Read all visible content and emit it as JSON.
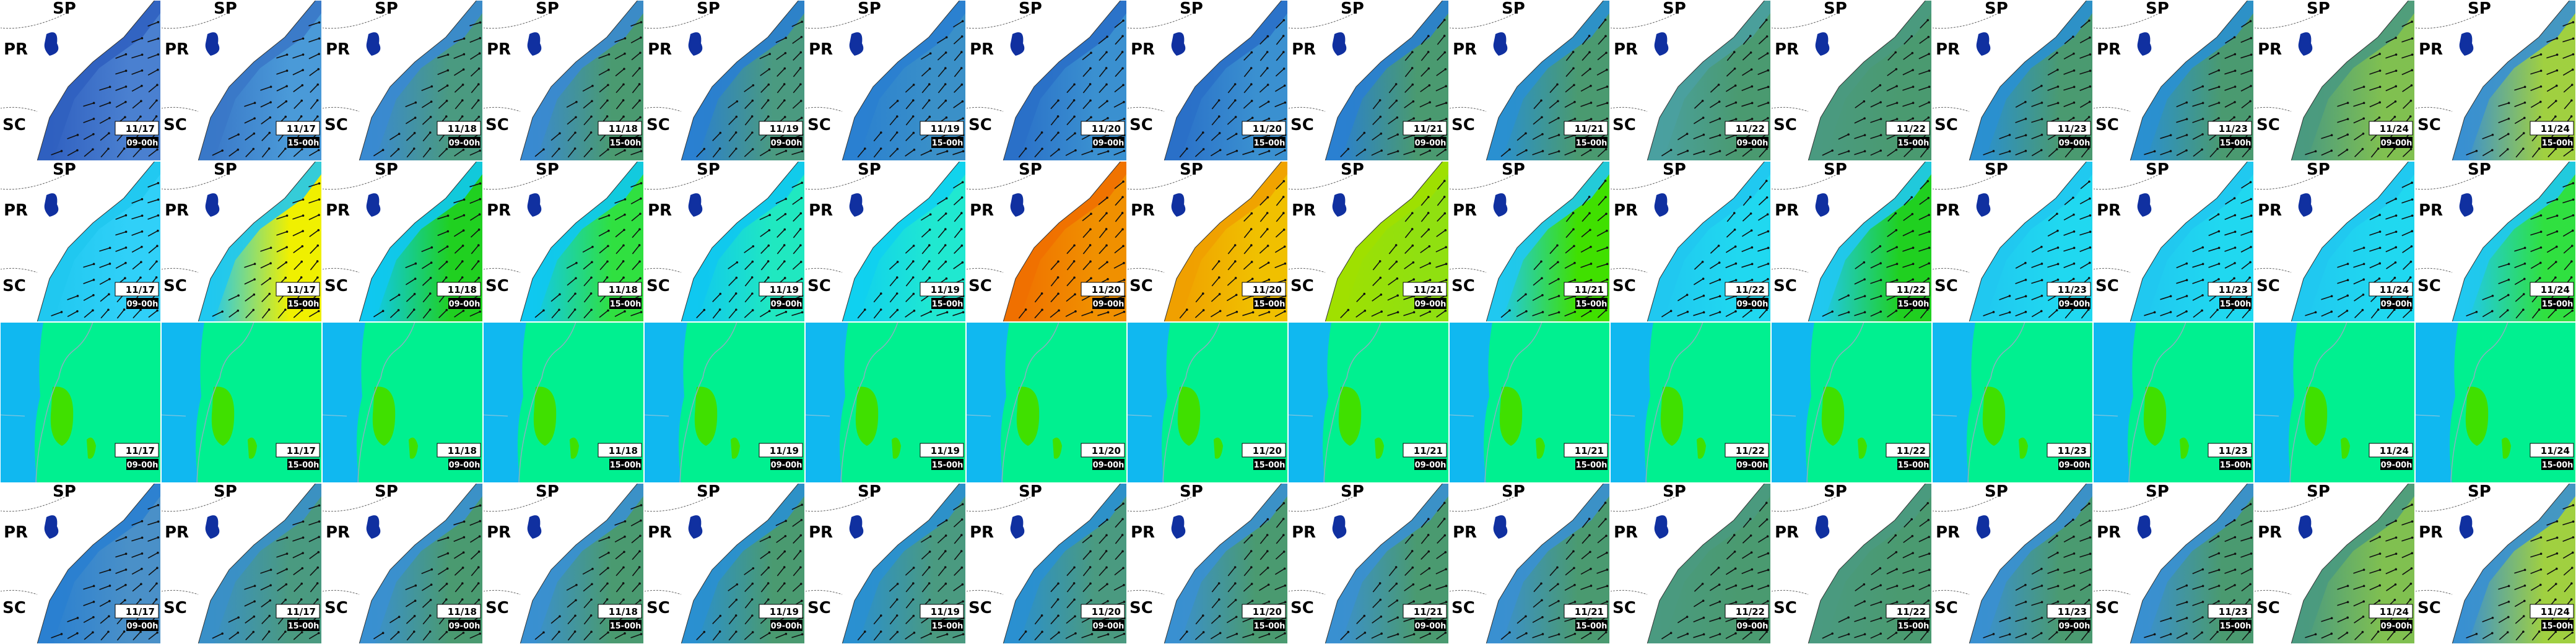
{
  "states": {
    "north": "SP",
    "middle": "PR",
    "south": "SC"
  },
  "timestamps": [
    {
      "date": "11/17",
      "time": "09-00h"
    },
    {
      "date": "11/17",
      "time": "15-00h"
    },
    {
      "date": "11/18",
      "time": "09-00h"
    },
    {
      "date": "11/18",
      "time": "15-00h"
    },
    {
      "date": "11/19",
      "time": "09-00h"
    },
    {
      "date": "11/19",
      "time": "15-00h"
    },
    {
      "date": "11/20",
      "time": "09-00h"
    },
    {
      "date": "11/20",
      "time": "15-00h"
    },
    {
      "date": "11/21",
      "time": "09-00h"
    },
    {
      "date": "11/21",
      "time": "15-00h"
    },
    {
      "date": "11/22",
      "time": "09-00h"
    },
    {
      "date": "11/22",
      "time": "15-00h"
    },
    {
      "date": "11/23",
      "time": "09-00h"
    },
    {
      "date": "11/23",
      "time": "15-00h"
    },
    {
      "date": "11/24",
      "time": "09-00h"
    },
    {
      "date": "11/24",
      "time": "15-00h"
    }
  ],
  "rows": [
    {
      "style": "map",
      "show_states": true,
      "colors": [
        [
          "#3060c0",
          "#4a80d0"
        ],
        [
          "#3a78c8",
          "#4a9ad8"
        ],
        [
          "#3a8ad0",
          "#4a9a80"
        ],
        [
          "#3a8ad0",
          "#4a9a70"
        ],
        [
          "#2a80d0",
          "#4a9a80"
        ],
        [
          "#2a80d0",
          "#3a90c8"
        ],
        [
          "#2a70c8",
          "#3a90d0"
        ],
        [
          "#2a70c8",
          "#3a90d0"
        ],
        [
          "#2a80d0",
          "#4a9a70"
        ],
        [
          "#2a90d0",
          "#4a9a70"
        ],
        [
          "#4aa0a0",
          "#4a9a70"
        ],
        [
          "#4a9a80",
          "#4a9a70"
        ],
        [
          "#2a90d0",
          "#4a9a70"
        ],
        [
          "#2a90d0",
          "#4a9a70"
        ],
        [
          "#4a9a80",
          "#80c050"
        ],
        [
          "#3a90d0",
          "#a0d040"
        ]
      ]
    },
    {
      "style": "map",
      "show_states": true,
      "colors": [
        [
          "#20c8f0",
          "#30d0f8"
        ],
        [
          "#20c8f0",
          "#f0f000"
        ],
        [
          "#10c8f0",
          "#20d020"
        ],
        [
          "#10c8f0",
          "#30e040"
        ],
        [
          "#10c8f0",
          "#20e8c0"
        ],
        [
          "#10d0f0",
          "#20e8d0"
        ],
        [
          "#f07000",
          "#f09000"
        ],
        [
          "#f0a000",
          "#f0c000"
        ],
        [
          "#a0e000",
          "#90e010"
        ],
        [
          "#20c8f0",
          "#40e000"
        ],
        [
          "#20c8f0",
          "#20d8f0"
        ],
        [
          "#20c8f0",
          "#20d020"
        ],
        [
          "#20c8f0",
          "#20d8f0"
        ],
        [
          "#20c8f0",
          "#20d8f0"
        ],
        [
          "#20c8f0",
          "#20d8f0"
        ],
        [
          "#20c8f0",
          "#30e040"
        ]
      ]
    },
    {
      "style": "plain",
      "show_states": false,
      "colors": [
        [
          "#10b8f0",
          "#00f090"
        ],
        [
          "#10b8f0",
          "#00f090"
        ],
        [
          "#10b8f0",
          "#00f090"
        ],
        [
          "#10b8f0",
          "#00f090"
        ],
        [
          "#10b8f0",
          "#00f090"
        ],
        [
          "#10b8f0",
          "#00f090"
        ],
        [
          "#10b8f0",
          "#00f090"
        ],
        [
          "#10b8f0",
          "#00f090"
        ],
        [
          "#10b8f0",
          "#00f090"
        ],
        [
          "#10b8f0",
          "#00f090"
        ],
        [
          "#10b8f0",
          "#00f090"
        ],
        [
          "#10b8f0",
          "#00f090"
        ],
        [
          "#10b8f0",
          "#00f090"
        ],
        [
          "#10b8f0",
          "#00f090"
        ],
        [
          "#10b8f0",
          "#00f090"
        ],
        [
          "#10b8f0",
          "#00f090"
        ]
      ]
    },
    {
      "style": "map",
      "show_states": true,
      "colors": [
        [
          "#2a80d0",
          "#4a90c8"
        ],
        [
          "#3a90c8",
          "#4a9a80"
        ],
        [
          "#3a90d0",
          "#4a9a70"
        ],
        [
          "#3a90d0",
          "#4a9a70"
        ],
        [
          "#2a90d0",
          "#4a9a70"
        ],
        [
          "#2a90d0",
          "#4a9a80"
        ],
        [
          "#2a90d0",
          "#4a9a80"
        ],
        [
          "#3a90d0",
          "#4a9a70"
        ],
        [
          "#3a90d0",
          "#4a9a70"
        ],
        [
          "#3a90d0",
          "#4a9a70"
        ],
        [
          "#4a9a80",
          "#4a9a70"
        ],
        [
          "#4a9a80",
          "#4a9a70"
        ],
        [
          "#3a90d0",
          "#4a9a70"
        ],
        [
          "#3a90d0",
          "#4a9a70"
        ],
        [
          "#4a9a80",
          "#80c050"
        ],
        [
          "#3a90d0",
          "#a0d040"
        ]
      ]
    }
  ]
}
